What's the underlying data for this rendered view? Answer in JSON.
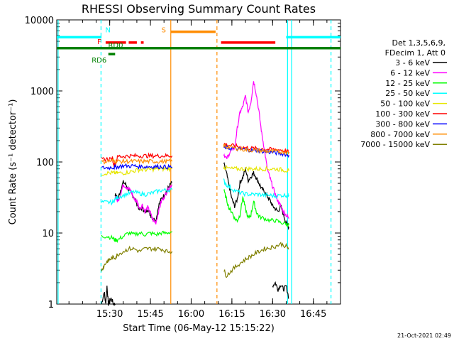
{
  "chart_data": {
    "type": "line",
    "title": "RHESSI Observing Summary Count Rates",
    "xlabel": "Start Time (06-May-12 15:15:22)",
    "ylabel": "Count Rate (s⁻¹ detector⁻¹)",
    "ylog": true,
    "ylim": [
      1,
      10000
    ],
    "xlim_minutes": [
      -4.5,
      100
    ],
    "x_ticks": [
      "15:30",
      "15:45",
      "16:00",
      "16:15",
      "16:30",
      "16:45"
    ],
    "x_tick_minutes": [
      15,
      30,
      45,
      60,
      75,
      90
    ],
    "y_ticks": [
      "1",
      "10",
      "100",
      "1000",
      "10000"
    ],
    "y_tick_values": [
      1,
      10,
      100,
      1000,
      10000
    ],
    "legend": {
      "header": [
        "Det 1,3,5,6,9,",
        "FDecim 1, Att 0"
      ],
      "entries": [
        {
          "label": "3 - 6 keV",
          "color": "#000000"
        },
        {
          "label": "6 - 12 keV",
          "color": "#ff00ff"
        },
        {
          "label": "12 - 25 keV",
          "color": "#00ff00"
        },
        {
          "label": "25 - 50 keV",
          "color": "#00ffff"
        },
        {
          "label": "50 - 100 keV",
          "color": "#e6e600"
        },
        {
          "label": "100 - 300 keV",
          "color": "#ff0000"
        },
        {
          "label": "300 - 800 keV",
          "color": "#0000ff"
        },
        {
          "label": "800 - 7000 keV",
          "color": "#ff8c00"
        },
        {
          "label": "7000 - 15000 keV",
          "color": "#808000"
        }
      ],
      "position": "right"
    },
    "series": [
      {
        "name": "3 - 6 keV",
        "color": "#000000",
        "segments": [
          {
            "x": [
              12,
              13,
              13.5,
              14,
              14.5,
              15.5,
              16.5,
              17
            ],
            "y": [
              1,
              1.5,
              1,
              1.8,
              1,
              1.2,
              1,
              1
            ]
          },
          {
            "x": [
              17,
              18,
              19,
              20,
              21,
              22,
              23,
              24,
              25,
              26,
              27,
              28,
              29,
              30,
              31,
              32,
              33,
              34,
              35,
              36,
              37,
              38
            ],
            "y": [
              35,
              30,
              40,
              52,
              48,
              40,
              36,
              32,
              26,
              21,
              23,
              19,
              22,
              18,
              16,
              15,
              24,
              30,
              34,
              40,
              46,
              52
            ]
          },
          {
            "x": [
              57,
              58,
              59,
              60,
              61,
              62,
              63,
              64,
              65,
              66,
              67,
              68,
              69,
              70,
              71,
              72,
              73,
              74,
              75,
              76,
              77,
              78,
              79,
              80,
              81
            ],
            "y": [
              95,
              70,
              45,
              30,
              24,
              30,
              52,
              60,
              80,
              55,
              62,
              70,
              60,
              50,
              42,
              38,
              33,
              29,
              24,
              22,
              20,
              24,
              18,
              14,
              12
            ]
          },
          {
            "x": [
              75,
              76,
              77,
              78,
              79,
              80,
              81
            ],
            "y": [
              1.8,
              2,
              1.6,
              1.9,
              1.6,
              1.8,
              1.2
            ]
          }
        ]
      },
      {
        "name": "6 - 12 keV",
        "color": "#ff00ff",
        "segments": [
          {
            "x": [
              17,
              18,
              19,
              20,
              21,
              22,
              23,
              24,
              25,
              26,
              27,
              28,
              29,
              30,
              31,
              32,
              33,
              34,
              35,
              36,
              37,
              38
            ],
            "y": [
              32,
              28,
              35,
              48,
              45,
              42,
              38,
              30,
              28,
              22,
              25,
              20,
              23,
              19,
              15,
              14,
              20,
              28,
              32,
              38,
              44,
              48
            ]
          },
          {
            "x": [
              57,
              58,
              59,
              60,
              61,
              62,
              63,
              64,
              65,
              66,
              67,
              68,
              69,
              70,
              71,
              72,
              73,
              74,
              75,
              76,
              77,
              78,
              79,
              80,
              81
            ],
            "y": [
              130,
              110,
              130,
              150,
              160,
              300,
              500,
              600,
              850,
              500,
              700,
              1400,
              900,
              500,
              250,
              150,
              80,
              60,
              45,
              35,
              28,
              24,
              20,
              18,
              16
            ]
          }
        ]
      },
      {
        "name": "12 - 25 keV",
        "color": "#00ff00",
        "segments": [
          {
            "x": [
              12,
              14,
              16,
              17,
              18,
              20,
              22,
              24,
              26,
              28,
              30,
              32,
              34,
              36,
              38
            ],
            "y": [
              9,
              9,
              8.5,
              8,
              8,
              9,
              10,
              9.5,
              10,
              9.5,
              10,
              9.5,
              10,
              10,
              10.5
            ]
          },
          {
            "x": [
              57,
              58,
              59,
              60,
              61,
              62,
              63,
              64,
              65,
              66,
              67,
              68,
              69,
              70,
              72,
              74,
              76,
              78,
              80,
              81
            ],
            "y": [
              40,
              30,
              22,
              20,
              16,
              15,
              18,
              32,
              22,
              16,
              18,
              28,
              20,
              17,
              16,
              15,
              15,
              14,
              13.5,
              13
            ]
          }
        ]
      },
      {
        "name": "25 - 50 keV",
        "color": "#00ffff",
        "segments": [
          {
            "x": [
              12,
              14,
              16,
              17,
              18,
              20,
              22,
              24,
              26,
              28,
              30,
              32,
              34,
              36,
              38
            ],
            "y": [
              27,
              27,
              27,
              30,
              32,
              34,
              36,
              38,
              36,
              35,
              36,
              38,
              40,
              40,
              41
            ]
          },
          {
            "x": [
              57,
              58,
              60,
              62,
              64,
              66,
              68,
              70,
              72,
              74,
              76,
              78,
              80,
              81
            ],
            "y": [
              55,
              48,
              42,
              38,
              36,
              35,
              35,
              35,
              34,
              34,
              33,
              34,
              34,
              34
            ]
          }
        ]
      },
      {
        "name": "50 - 100 keV",
        "color": "#e6e600",
        "segments": [
          {
            "x": [
              12,
              14,
              16,
              17,
              18,
              20,
              22,
              24,
              26,
              28,
              30,
              32,
              34,
              36,
              38
            ],
            "y": [
              68,
              70,
              70,
              70,
              70,
              70,
              72,
              75,
              78,
              78,
              78,
              80,
              80,
              80,
              80
            ]
          },
          {
            "x": [
              57,
              58,
              60,
              62,
              64,
              66,
              68,
              70,
              72,
              74,
              76,
              78,
              80,
              81
            ],
            "y": [
              85,
              82,
              80,
              80,
              80,
              80,
              80,
              80,
              80,
              80,
              80,
              78,
              76,
              75
            ]
          }
        ]
      },
      {
        "name": "100 - 300 keV",
        "color": "#ff0000",
        "segments": [
          {
            "x": [
              12,
              14,
              16,
              16.5,
              17,
              18,
              20,
              22,
              24,
              26,
              28,
              30,
              32,
              34,
              36,
              38
            ],
            "y": [
              108,
              110,
              112,
              92,
              92,
              120,
              120,
              122,
              122,
              122,
              122,
              122,
              122,
              122,
              122,
              122
            ]
          },
          {
            "x": [
              57,
              58,
              60,
              62,
              64,
              66,
              68,
              70,
              72,
              74,
              76,
              78,
              80,
              81
            ],
            "y": [
              180,
              175,
              170,
              165,
              160,
              158,
              155,
              154,
              152,
              150,
              150,
              148,
              142,
              138
            ]
          }
        ]
      },
      {
        "name": "300 - 800 keV",
        "color": "#0000ff",
        "segments": [
          {
            "x": [
              12,
              14,
              16,
              17,
              18,
              20,
              22,
              24,
              26,
              28,
              30,
              32,
              34,
              36,
              38
            ],
            "y": [
              82,
              83,
              84,
              84,
              86,
              88,
              88,
              88,
              86,
              86,
              86,
              86,
              86,
              85,
              85
            ]
          },
          {
            "x": [
              57,
              58,
              60,
              62,
              64,
              66,
              68,
              70,
              72,
              74,
              76,
              78,
              80,
              81
            ],
            "y": [
              160,
              158,
              155,
              152,
              150,
              148,
              145,
              145,
              140,
              138,
              135,
              132,
              128,
              125
            ]
          }
        ]
      },
      {
        "name": "800 - 7000 keV",
        "color": "#ff8c00",
        "segments": [
          {
            "x": [
              12,
              14,
              16,
              17,
              18,
              20,
              22,
              24,
              26,
              28,
              30,
              32,
              34,
              36,
              38
            ],
            "y": [
              100,
              102,
              104,
              104,
              102,
              102,
              102,
              102,
              102,
              102,
              102,
              102,
              102,
              102,
              102
            ]
          },
          {
            "x": [
              57,
              58,
              60,
              62,
              64,
              66,
              68,
              70,
              72,
              74,
              76,
              78,
              80,
              81
            ],
            "y": [
              170,
              165,
              160,
              155,
              150,
              148,
              146,
              144,
              142,
              141,
              140,
              140,
              138,
              136
            ]
          }
        ]
      },
      {
        "name": "7000 - 15000 keV",
        "color": "#808000",
        "segments": [
          {
            "x": [
              12,
              13,
              14,
              15,
              16,
              17,
              18,
              20,
              22,
              24,
              26,
              28,
              30,
              32,
              34,
              36,
              38
            ],
            "y": [
              3,
              3.5,
              4,
              4.2,
              4.5,
              4.5,
              5,
              5.5,
              6,
              6,
              5.5,
              6,
              6,
              6,
              6,
              5.5,
              5.5
            ]
          },
          {
            "x": [
              57,
              58,
              60,
              62,
              64,
              66,
              68,
              70,
              72,
              74,
              76,
              78,
              80,
              81
            ],
            "y": [
              3,
              2.5,
              3,
              3.5,
              4,
              4.5,
              5,
              5.5,
              6,
              6.2,
              6.5,
              7,
              6.5,
              6
            ]
          }
        ]
      }
    ],
    "flag_bars": [
      {
        "label": "N",
        "color": "#00ffff",
        "segments": [
          [
            -4.5,
            12
          ],
          [
            80,
            100
          ]
        ],
        "y": 5700
      },
      {
        "label": "S",
        "color": "#ff8c00",
        "segments": [
          [
            37.5,
            54
          ]
        ],
        "y": 6800
      },
      {
        "label": "F",
        "color": "#ff0000",
        "segments": [
          [
            13.5,
            21
          ],
          [
            22,
            25
          ],
          [
            26.5,
            27.5
          ],
          [
            56,
            76
          ]
        ],
        "y": 4800
      },
      {
        "label": "RD0",
        "color": "#008000",
        "segments": [
          [
            -4.5,
            100
          ]
        ],
        "y": 4000
      },
      {
        "label": "RD6",
        "color": "#008000",
        "segments": [
          [
            14.5,
            17
          ]
        ],
        "y": 3300
      }
    ],
    "vertical_lines": [
      {
        "minute": -4.0,
        "color": "#00ffff",
        "style": "solid"
      },
      {
        "minute": 11.8,
        "color": "#00ffff",
        "style": "dashed"
      },
      {
        "minute": 37.5,
        "color": "#ff8c00",
        "style": "solid"
      },
      {
        "minute": 54.5,
        "color": "#ff8c00",
        "style": "dashed"
      },
      {
        "minute": 80.5,
        "color": "#00ffff",
        "style": "solid"
      },
      {
        "minute": 82.0,
        "color": "#00ffff",
        "style": "solid"
      },
      {
        "minute": 96.5,
        "color": "#00ffff",
        "style": "dashed"
      }
    ],
    "footer_timestamp": "21-Oct-2021 02:49"
  }
}
